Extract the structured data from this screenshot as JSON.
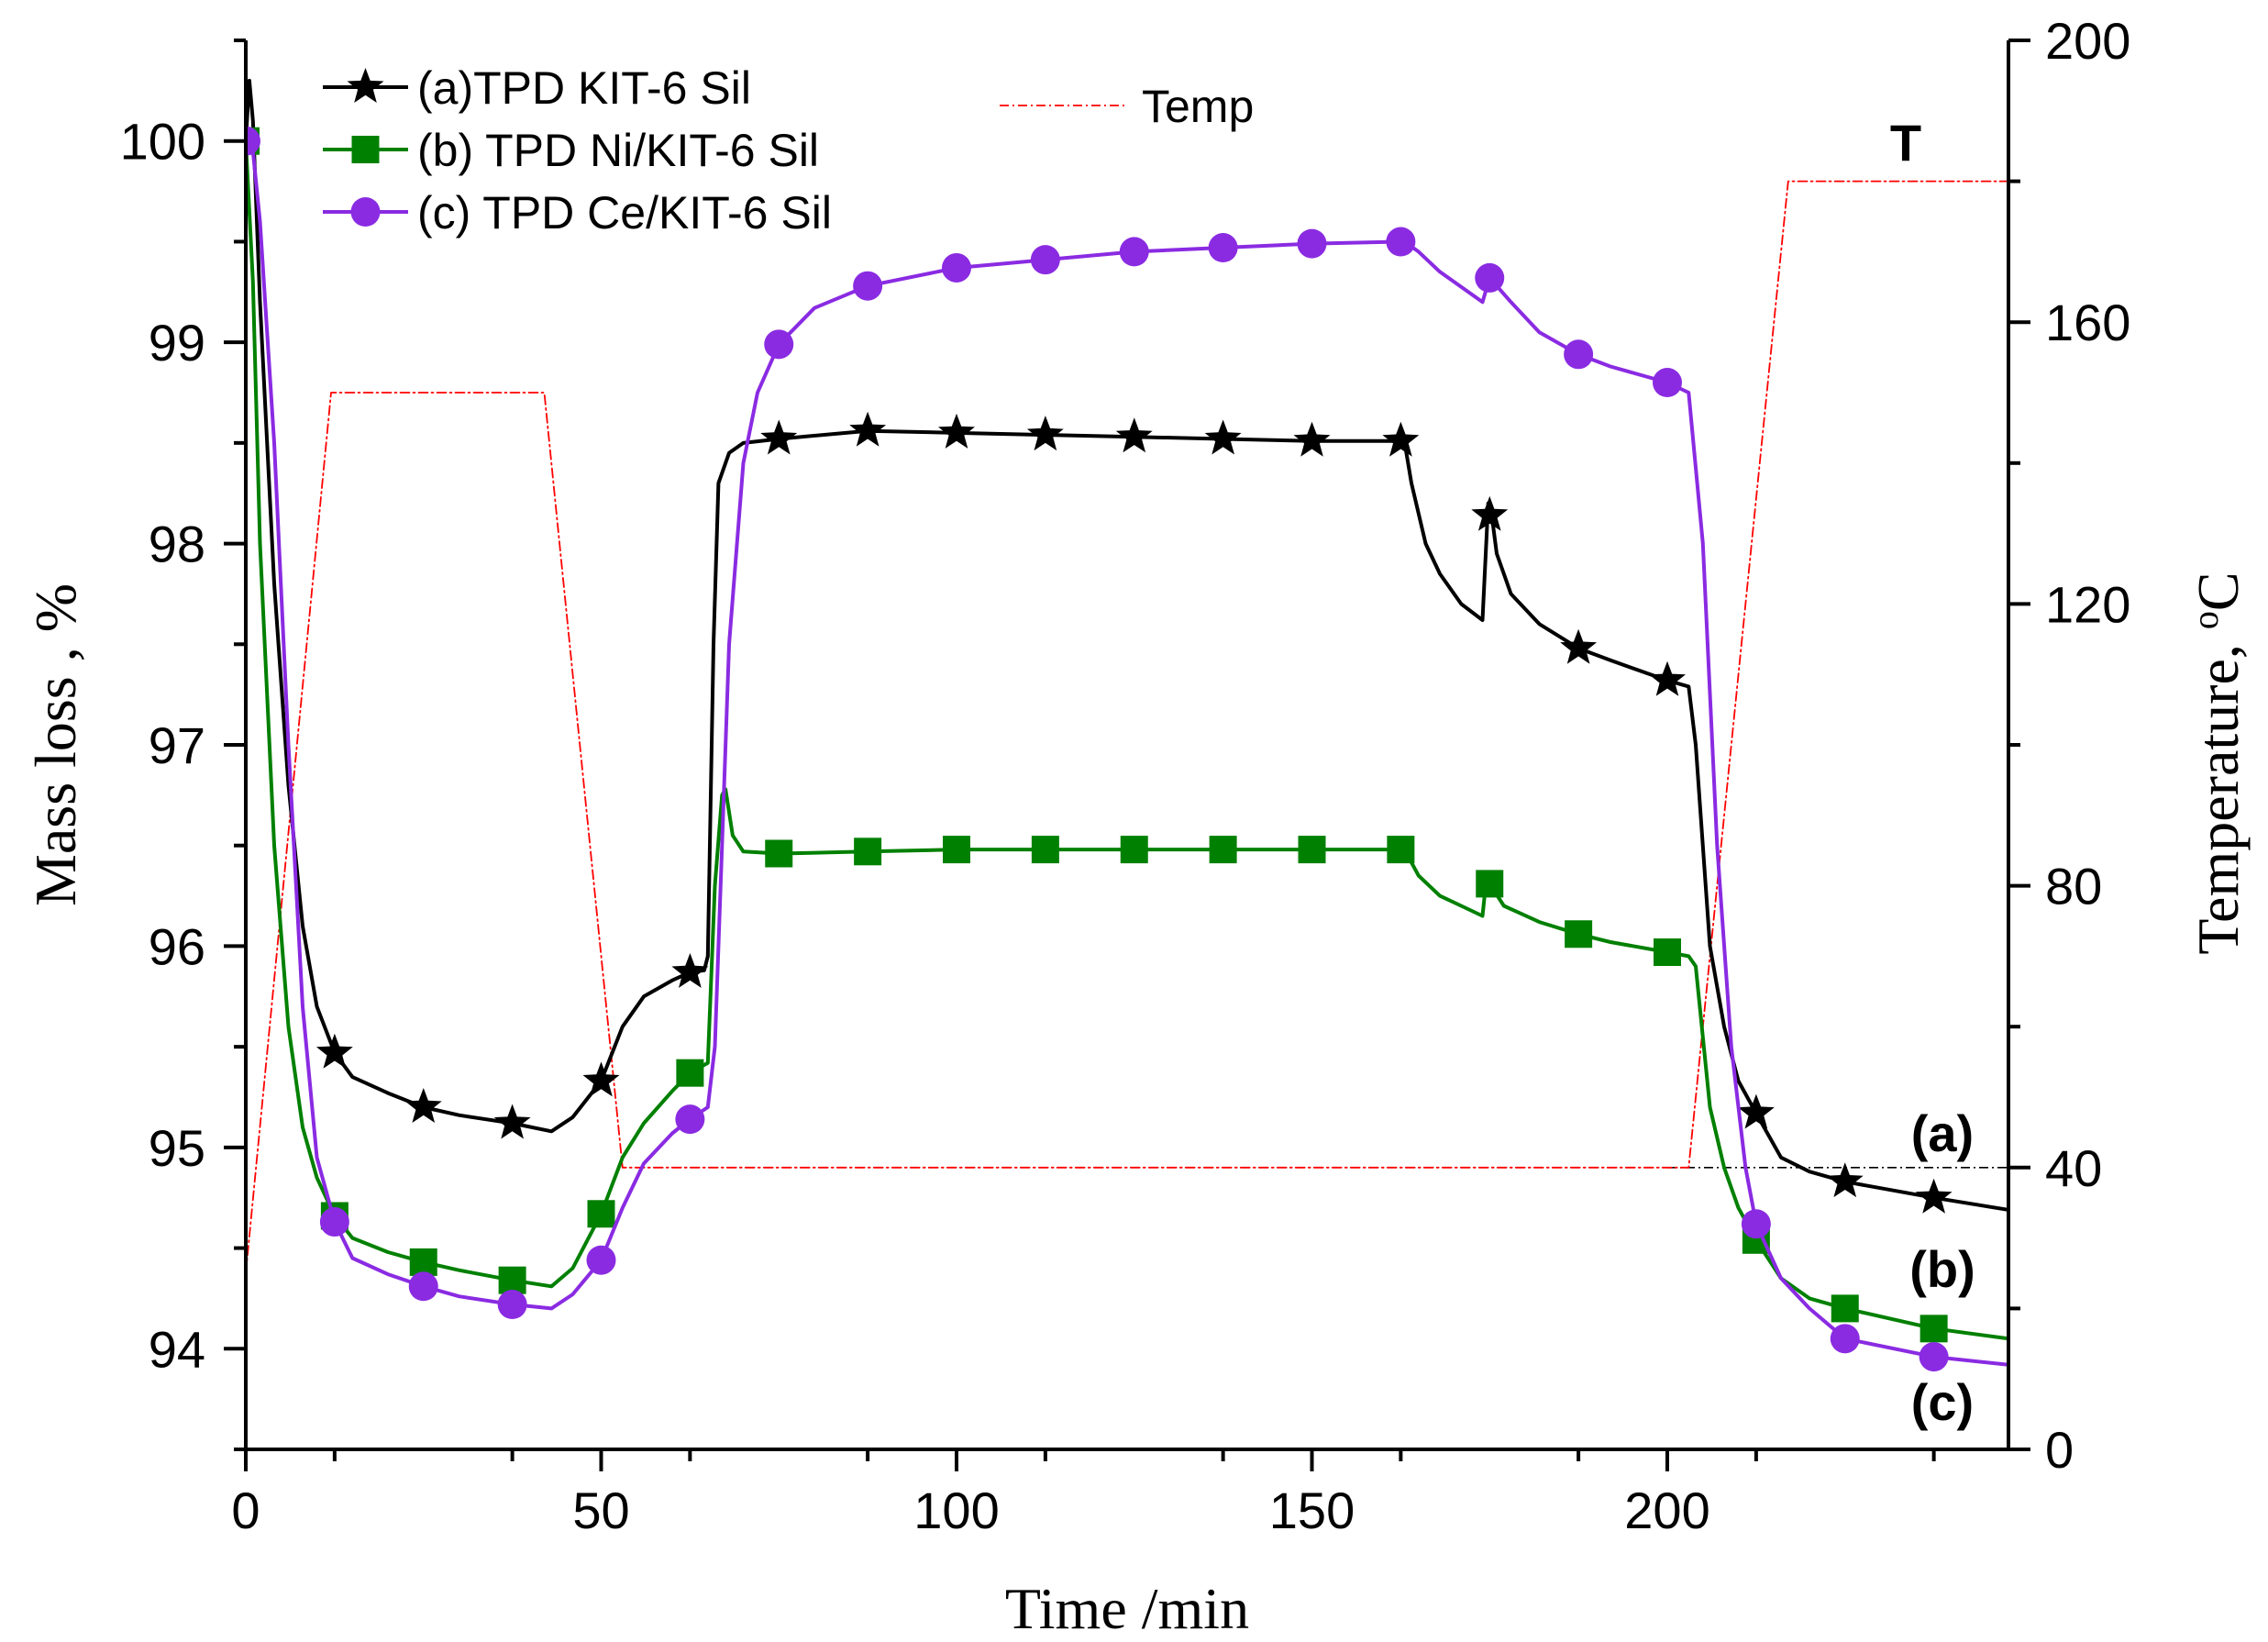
{
  "chart_data": {
    "type": "line",
    "xlabel": "Time /min",
    "ylabel": "Mass loss , %",
    "y2label_prefix": "Temperature, ",
    "y2label_sup": "o",
    "y2label_unit": "C",
    "xlim": [
      0,
      248
    ],
    "ylim": [
      93.5,
      100.5
    ],
    "y2lim": [
      0,
      200
    ],
    "xticks": [
      0,
      50,
      100,
      150,
      200
    ],
    "yticks": [
      94,
      95,
      96,
      97,
      98,
      99,
      100
    ],
    "y2ticks": [
      0,
      40,
      80,
      120,
      160,
      200
    ],
    "grid": false,
    "legend_position": "top-left",
    "annotations": [
      "T",
      "(a)",
      "(b)",
      "(c)"
    ],
    "reference_line": {
      "axis": "y2",
      "value": 40,
      "color": "#000000"
    },
    "series": [
      {
        "name": "(a)TPD KIT-6 Sil",
        "axis": "y",
        "color": "#000000",
        "marker": "star",
        "x": [
          0,
          0.5,
          1,
          2,
          4,
          6,
          8,
          10,
          12.5,
          15,
          20,
          25,
          30,
          37.5,
          43,
          46,
          50,
          53,
          56,
          60,
          62.5,
          64.5,
          65,
          65.8,
          66.5,
          68,
          70,
          75,
          87.5,
          100,
          112.5,
          125,
          137.5,
          150,
          163,
          164,
          166,
          168,
          171,
          174,
          174.8,
          175.3,
          176,
          178,
          182,
          187.5,
          192,
          200,
          203,
          204,
          206,
          208,
          210,
          212.5,
          216,
          220,
          225,
          237.5,
          248
        ],
        "y": [
          100,
          100.3,
          100.1,
          99.2,
          97.8,
          96.8,
          96.1,
          95.7,
          95.47,
          95.35,
          95.27,
          95.2,
          95.16,
          95.12,
          95.08,
          95.15,
          95.33,
          95.6,
          95.75,
          95.83,
          95.87,
          95.88,
          95.95,
          97.5,
          98.3,
          98.45,
          98.5,
          98.52,
          98.56,
          98.55,
          98.54,
          98.53,
          98.52,
          98.51,
          98.51,
          98.3,
          98.0,
          97.85,
          97.7,
          97.62,
          98.2,
          98.14,
          97.95,
          97.75,
          97.6,
          97.48,
          97.42,
          97.32,
          97.29,
          97.0,
          96.0,
          95.6,
          95.33,
          95.17,
          94.95,
          94.88,
          94.83,
          94.75,
          94.69
        ],
        "markers_x": [
          12.5,
          25,
          37.5,
          50,
          62.5,
          75,
          87.5,
          100,
          112.5,
          125,
          137.5,
          150,
          162.5,
          175,
          187.5,
          200,
          212.5,
          225,
          237.5
        ],
        "markers_y": [
          95.47,
          95.2,
          95.12,
          95.33,
          95.87,
          98.52,
          98.56,
          98.55,
          98.54,
          98.53,
          98.52,
          98.51,
          98.51,
          98.14,
          97.48,
          97.32,
          95.17,
          94.83,
          94.75
        ]
      },
      {
        "name": "(b) TPD Ni/KIT-6 Sil",
        "axis": "y",
        "color": "#008000",
        "marker": "square",
        "x": [
          0,
          1,
          2,
          4,
          6,
          8,
          10,
          12.5,
          15,
          20,
          25,
          30,
          37.5,
          43,
          46,
          50,
          53,
          56,
          60,
          62.5,
          65,
          66,
          67,
          67.5,
          68.5,
          70,
          75,
          87.5,
          100,
          112.5,
          125,
          137.5,
          150,
          163,
          165,
          168,
          171,
          174,
          174.5,
          175,
          177,
          182,
          187.5,
          192,
          200,
          203,
          204,
          206,
          208,
          210,
          212.5,
          216,
          220,
          225,
          237.5,
          248
        ],
        "y": [
          100,
          99.3,
          98.0,
          96.5,
          95.6,
          95.1,
          94.85,
          94.66,
          94.55,
          94.48,
          94.43,
          94.39,
          94.34,
          94.31,
          94.4,
          94.67,
          94.95,
          95.12,
          95.28,
          95.37,
          95.42,
          96.3,
          96.75,
          96.78,
          96.55,
          96.47,
          96.46,
          96.47,
          96.48,
          96.48,
          96.48,
          96.48,
          96.48,
          96.48,
          96.35,
          96.25,
          96.2,
          96.15,
          96.32,
          96.31,
          96.2,
          96.12,
          96.06,
          96.02,
          95.97,
          95.95,
          95.9,
          95.2,
          94.9,
          94.7,
          94.54,
          94.35,
          94.25,
          94.2,
          94.1,
          94.05
        ]
      },
      {
        "name": "(c) TPD Ce/KIT-6 Sil",
        "axis": "y",
        "color": "#8A2BE2",
        "marker": "circle",
        "x": [
          0,
          1,
          2,
          4,
          6,
          8,
          10,
          12.5,
          15,
          20,
          25,
          30,
          37.5,
          43,
          46,
          50,
          53,
          56,
          60,
          62.5,
          65,
          66,
          67,
          68,
          70,
          72,
          75,
          80,
          87.5,
          100,
          112.5,
          125,
          137.5,
          150,
          163,
          165,
          168,
          170,
          172,
          174,
          175,
          178,
          182,
          187.5,
          192,
          200,
          203,
          205,
          207,
          209,
          211,
          212.5,
          216,
          220,
          225,
          237.5,
          248
        ],
        "y": [
          100,
          99.95,
          99.6,
          98.5,
          97.0,
          95.7,
          94.95,
          94.63,
          94.45,
          94.37,
          94.31,
          94.26,
          94.22,
          94.2,
          94.27,
          94.44,
          94.7,
          94.92,
          95.07,
          95.14,
          95.2,
          95.5,
          96.5,
          97.5,
          98.4,
          98.75,
          98.99,
          99.17,
          99.28,
          99.37,
          99.41,
          99.45,
          99.47,
          99.49,
          99.5,
          99.45,
          99.35,
          99.3,
          99.25,
          99.2,
          99.32,
          99.2,
          99.05,
          98.94,
          98.88,
          98.8,
          98.75,
          98.0,
          96.5,
          95.5,
          94.9,
          94.62,
          94.35,
          94.2,
          94.05,
          93.96,
          93.92
        ]
      },
      {
        "name": "Temp",
        "axis": "y2",
        "color": "#ff0000",
        "dash": true,
        "x": [
          0,
          12,
          42,
          53,
          203,
          217,
          248
        ],
        "y": [
          25,
          150,
          150,
          40,
          40,
          180,
          180
        ]
      }
    ]
  }
}
